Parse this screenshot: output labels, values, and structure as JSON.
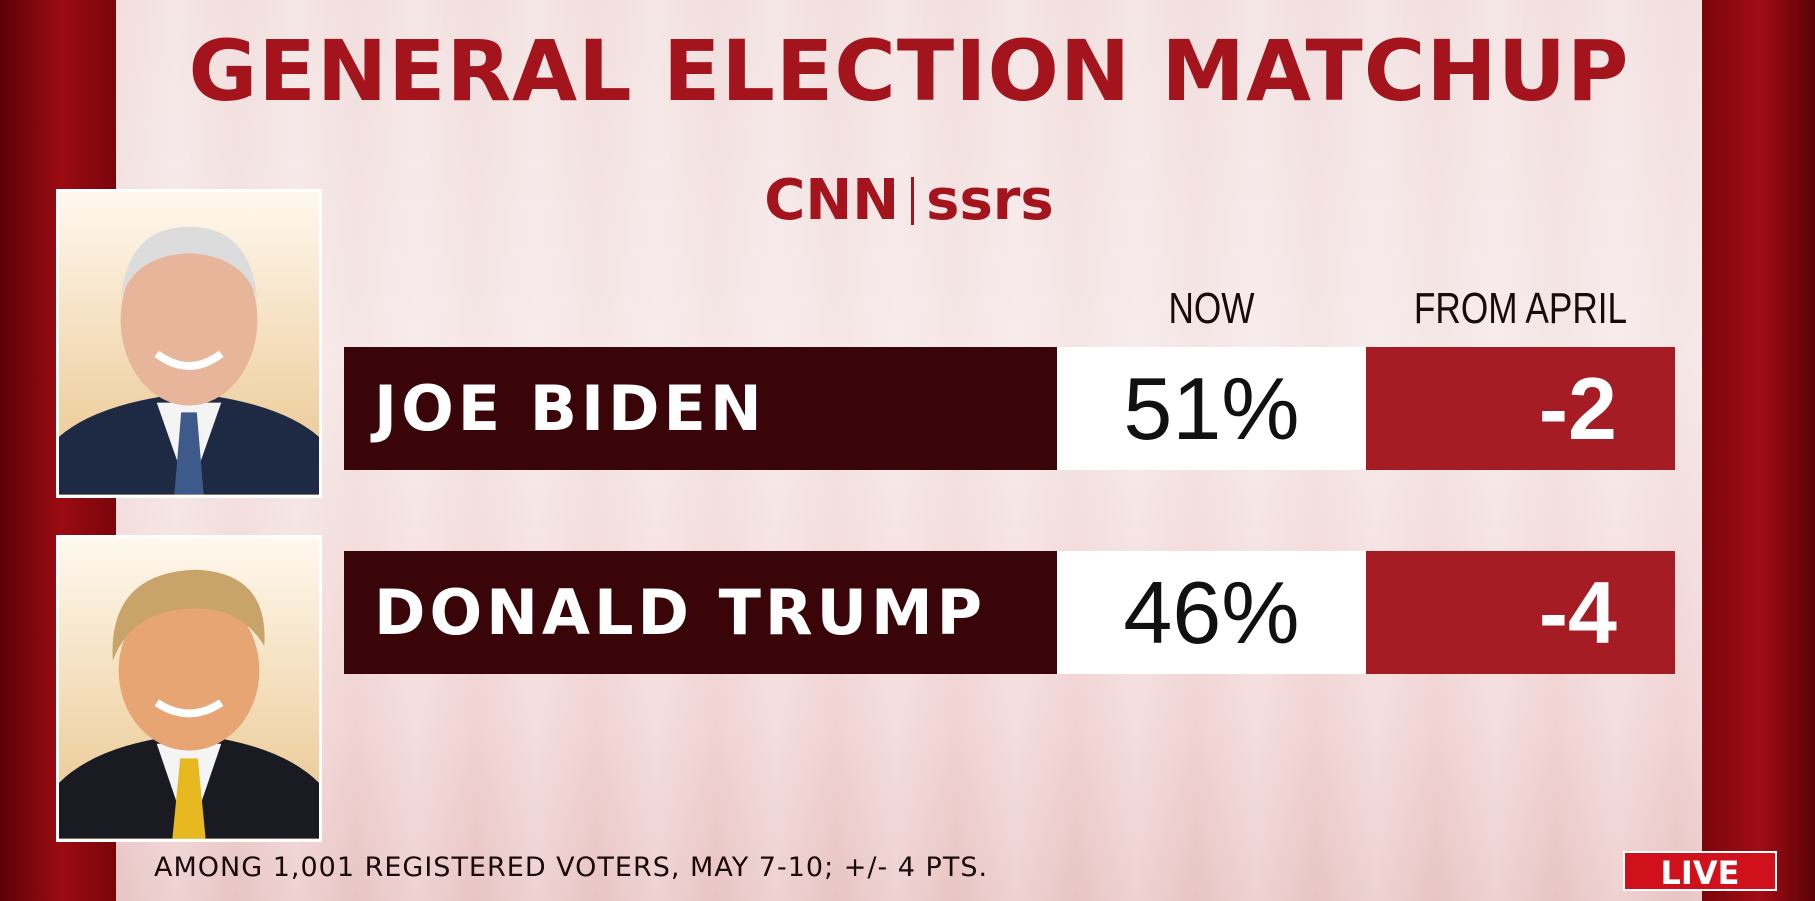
{
  "header": {
    "title": "GENERAL ELECTION MATCHUP",
    "logo": {
      "left": "CNN",
      "right": "ssrs"
    }
  },
  "table": {
    "columns": [
      "NOW",
      "FROM APRIL"
    ],
    "rows": [
      {
        "name": "JOE BIDEN",
        "now": "51%",
        "change": "-2"
      },
      {
        "name": "DONALD TRUMP",
        "now": "46%",
        "change": "-4"
      }
    ]
  },
  "footer": {
    "note": "AMONG 1,001 REGISTERED VOTERS, MAY 7-10; +/- 4 PTS."
  },
  "badge": "LIVE"
}
